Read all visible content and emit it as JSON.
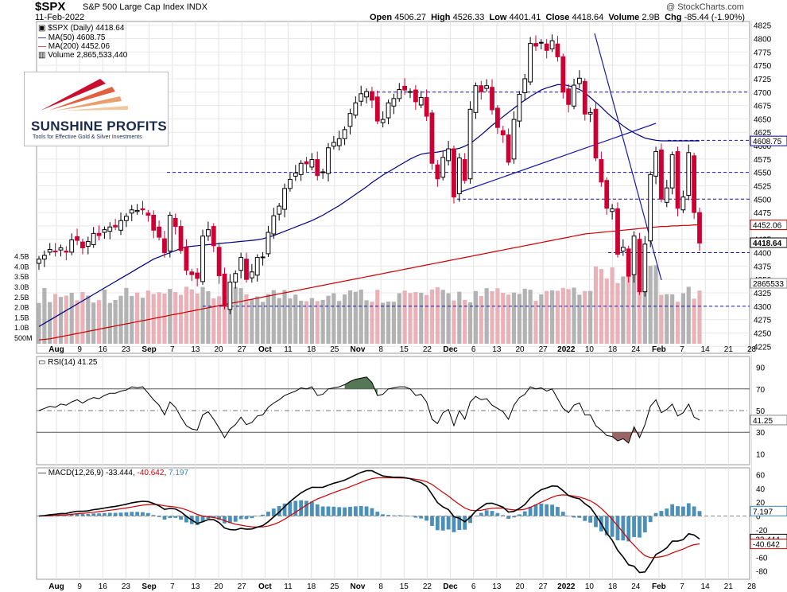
{
  "header": {
    "symbol": "$SPX",
    "name": "S&P 500 Large Cap Index",
    "exchange": "INDX",
    "date": "11-Feb-2022",
    "watermark": "@ StockCharts.com",
    "open_label": "Open",
    "open": "4506.27",
    "high_label": "High",
    "high": "4526.33",
    "low_label": "Low",
    "low": "4401.41",
    "close_label": "Close",
    "close": "4418.64",
    "volume_label": "Volume",
    "volume": "2.9B",
    "chg_label": "Chg",
    "chg": "-85.44 (-1.90%)"
  },
  "legend": {
    "price": "$SPX (Daily) 4418.64",
    "ma50": "MA(50) 4608.75",
    "ma200": "MA(200) 4452.06",
    "volume": "Volume 2,865,533,440"
  },
  "logo": {
    "name": "SUNSHINE PROFITS",
    "tagline": "Tools for Effective Gold & Silver Investments"
  },
  "rsi_label": "RSI(14) 41.25",
  "macd_label_prefix": "MACD(12,26,9)",
  "macd_label_macd": "-33.444",
  "macd_label_signal": "-40.642",
  "macd_label_hist": "7.197",
  "colors": {
    "up": "#000000",
    "down": "#cc0033",
    "ma50": "#000080",
    "ma200": "#cc0000",
    "vol_up": "#b3b3b3",
    "vol_down": "#e8b2b8",
    "macd_hist": "#4a90b8",
    "rsi_over": "#557755",
    "rsi_under": "#996666",
    "trend": "#1a1aa8"
  },
  "chart_data": [
    {
      "type": "candlestick",
      "title": "$SPX S&P 500 Large Cap Index INDX",
      "x_labels": [
        "Aug",
        "9",
        "16",
        "23",
        "Sep",
        "7",
        "13",
        "20",
        "27",
        "Oct",
        "11",
        "18",
        "25",
        "Nov",
        "8",
        "15",
        "22",
        "Dec",
        "6",
        "13",
        "20",
        "27",
        "2022",
        "10",
        "18",
        "24",
        "Feb",
        "7",
        "14",
        "21",
        "28"
      ],
      "y_ticks": [
        4225,
        4250,
        4275,
        4300,
        4325,
        4350,
        4375,
        4400,
        4425,
        4450,
        4475,
        4500,
        4525,
        4550,
        4575,
        4600,
        4625,
        4650,
        4675,
        4700,
        4725,
        4750,
        4775,
        4800,
        4825
      ],
      "ylim": [
        4212,
        4832
      ],
      "volume_ticks": [
        "500M",
        "1.0B",
        "1.5B",
        "2.0B",
        "2.5B",
        "3.0B",
        "3.5B",
        "4.0B",
        "4.5B"
      ],
      "value_labels": {
        "ma50": "4608.75",
        "ma200": "4452.06",
        "close": "4418.64",
        "volume": "2865533"
      },
      "horizontal_levels": [
        4700,
        4610,
        4550,
        4500,
        4400,
        4300
      ],
      "close": [
        4388,
        4395,
        4406,
        4402,
        4409,
        4401,
        4424,
        4423,
        4409,
        4421,
        4436,
        4432,
        4443,
        4448,
        4448,
        4460,
        4468,
        4480,
        4479,
        4480,
        4470,
        4442,
        4429,
        4400,
        4470,
        4449,
        4404,
        4367,
        4359,
        4352,
        4431,
        4443,
        4413,
        4357,
        4300,
        4345,
        4361,
        4391,
        4350,
        4364,
        4391,
        4392,
        4438,
        4469,
        4487,
        4520,
        4537,
        4549,
        4567,
        4566,
        4574,
        4544,
        4551,
        4596,
        4606,
        4613,
        4630,
        4660,
        4680,
        4697,
        4701,
        4685,
        4646,
        4649,
        4680,
        4688,
        4705,
        4704,
        4701,
        4682,
        4690,
        4655,
        4567,
        4538,
        4578,
        4594,
        4504,
        4577,
        4535,
        4668,
        4712,
        4701,
        4712,
        4667,
        4634,
        4620,
        4569,
        4649,
        4696,
        4725,
        4791,
        4786,
        4793,
        4778,
        4796,
        4766,
        4700,
        4677,
        4713,
        4726,
        4659,
        4662,
        4577,
        4532,
        4483,
        4482,
        4397,
        4410,
        4356,
        4431,
        4327,
        4416,
        4546,
        4589,
        4500,
        4521,
        4583,
        4483,
        4504,
        4587,
        4475,
        4418
      ],
      "ma50": [
        4262,
        4268,
        4274,
        4280,
        4286,
        4292,
        4298,
        4304,
        4310,
        4316,
        4322,
        4328,
        4334,
        4340,
        4346,
        4352,
        4358,
        4364,
        4370,
        4376,
        4382,
        4388,
        4392,
        4396,
        4400,
        4404,
        4408,
        4411,
        4412,
        4413,
        4414,
        4415,
        4416,
        4417,
        4418,
        4419,
        4420,
        4421,
        4422,
        4423,
        4424,
        4426,
        4429,
        4432,
        4436,
        4440,
        4444,
        4448,
        4452,
        4456,
        4460,
        4465,
        4470,
        4476,
        4482,
        4488,
        4495,
        4502,
        4509,
        4516,
        4523,
        4531,
        4538,
        4545,
        4551,
        4557,
        4563,
        4569,
        4575,
        4580,
        4584,
        4586,
        4587,
        4588,
        4590,
        4592,
        4593,
        4595,
        4599,
        4604,
        4612,
        4620,
        4629,
        4638,
        4646,
        4654,
        4662,
        4670,
        4678,
        4685,
        4692,
        4698,
        4704,
        4708,
        4711,
        4714,
        4714,
        4712,
        4709,
        4705,
        4699,
        4690,
        4681,
        4672,
        4662,
        4653,
        4645,
        4637,
        4630,
        4624,
        4619,
        4614,
        4612,
        4610,
        4609,
        4609,
        4609,
        4609,
        4609,
        4609,
        4609,
        4609
      ],
      "ma200": [
        4237,
        4238,
        4239,
        4241,
        4243,
        4245,
        4247,
        4249,
        4251,
        4253,
        4255,
        4257,
        4259,
        4261,
        4263,
        4265,
        4267,
        4269,
        4271,
        4273,
        4275,
        4277,
        4279,
        4281,
        4283,
        4285,
        4287,
        4289,
        4291,
        4293,
        4295,
        4297,
        4299,
        4301,
        4303,
        4305,
        4307,
        4309,
        4311,
        4313,
        4315,
        4317,
        4319,
        4321,
        4323,
        4325,
        4327,
        4329,
        4331,
        4333,
        4335,
        4337,
        4339,
        4341,
        4343,
        4345,
        4347,
        4349,
        4351,
        4353,
        4355,
        4357,
        4359,
        4361,
        4363,
        4365,
        4367,
        4369,
        4371,
        4373,
        4375,
        4377,
        4379,
        4381,
        4383,
        4385,
        4387,
        4389,
        4391,
        4393,
        4395,
        4397,
        4399,
        4401,
        4403,
        4405,
        4407,
        4409,
        4411,
        4413,
        4415,
        4417,
        4419,
        4421,
        4423,
        4425,
        4427,
        4429,
        4431,
        4433,
        4435,
        4436,
        4437,
        4438,
        4439,
        4440,
        4441,
        4442,
        4443,
        4444,
        4445,
        4446,
        4447,
        4448,
        4449,
        4449,
        4450,
        4450,
        4451,
        4451,
        4452,
        4452
      ]
    },
    {
      "type": "line",
      "title": "RSI(14)",
      "y_ticks": [
        10,
        30,
        50,
        70,
        90
      ],
      "ylim": [
        0,
        100
      ],
      "reference_lines": [
        70,
        50,
        30
      ],
      "value_label": "41.25",
      "values": [
        50,
        52,
        54,
        53,
        56,
        55,
        58,
        60,
        57,
        60,
        62,
        61,
        64,
        66,
        66,
        68,
        69,
        72,
        71,
        72,
        66,
        60,
        55,
        46,
        58,
        53,
        44,
        36,
        33,
        32,
        46,
        49,
        42,
        34,
        25,
        33,
        37,
        44,
        37,
        39,
        45,
        46,
        53,
        57,
        60,
        64,
        66,
        68,
        71,
        70,
        72,
        64,
        65,
        70,
        71,
        72,
        74,
        77,
        79,
        80,
        81,
        76,
        64,
        65,
        70,
        71,
        72,
        72,
        70,
        64,
        65,
        58,
        42,
        38,
        48,
        51,
        36,
        50,
        42,
        58,
        63,
        60,
        61,
        55,
        52,
        49,
        42,
        55,
        62,
        65,
        72,
        70,
        71,
        68,
        70,
        61,
        52,
        48,
        55,
        57,
        46,
        46,
        36,
        32,
        27,
        26,
        22,
        24,
        20,
        35,
        25,
        37,
        54,
        60,
        48,
        51,
        56,
        45,
        48,
        56,
        44,
        41.25
      ]
    },
    {
      "type": "line+bar",
      "title": "MACD(12,26,9)",
      "y_ticks": [
        -80,
        -60,
        -40,
        -20,
        0,
        20,
        40,
        60
      ],
      "ylim": [
        -92,
        70
      ],
      "series": [
        {
          "name": "MACD",
          "value_label": "-33.444"
        },
        {
          "name": "Signal",
          "value_label": "-40.642"
        },
        {
          "name": "Histogram",
          "value_label": "7.197"
        }
      ],
      "final_values": {
        "macd": -33.444,
        "signal": -40.642,
        "histogram": 7.197
      }
    }
  ]
}
